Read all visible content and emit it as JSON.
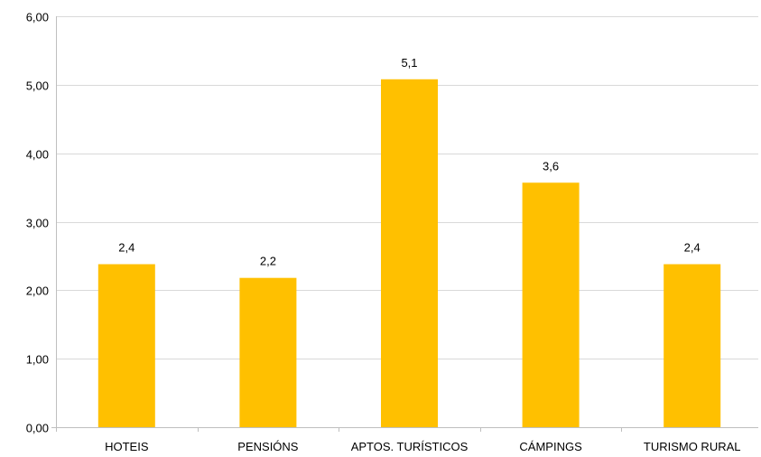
{
  "chart_data": {
    "type": "bar",
    "categories": [
      "HOTEIS",
      "PENSIÓNS",
      "APTOS. TURÍSTICOS",
      "CÁMPINGS",
      "TURISMO RURAL"
    ],
    "values": [
      2.38,
      2.18,
      5.08,
      3.57,
      2.38
    ],
    "data_labels": [
      "2,4",
      "2,2",
      "5,1",
      "3,6",
      "2,4"
    ],
    "y_ticks": [
      {
        "value": 0,
        "label": "0,00"
      },
      {
        "value": 1,
        "label": "1,00"
      },
      {
        "value": 2,
        "label": "2,00"
      },
      {
        "value": 3,
        "label": "3,00"
      },
      {
        "value": 4,
        "label": "4,00"
      },
      {
        "value": 5,
        "label": "5,00"
      },
      {
        "value": 6,
        "label": "6,00"
      }
    ],
    "ylim": [
      0,
      6
    ],
    "grid": true,
    "legend": "none",
    "title": "",
    "xlabel": "",
    "ylabel": "",
    "colors": {
      "bar": "#FFC000",
      "grid": "#D9D9D9",
      "axis": "#BFBFBF"
    }
  }
}
